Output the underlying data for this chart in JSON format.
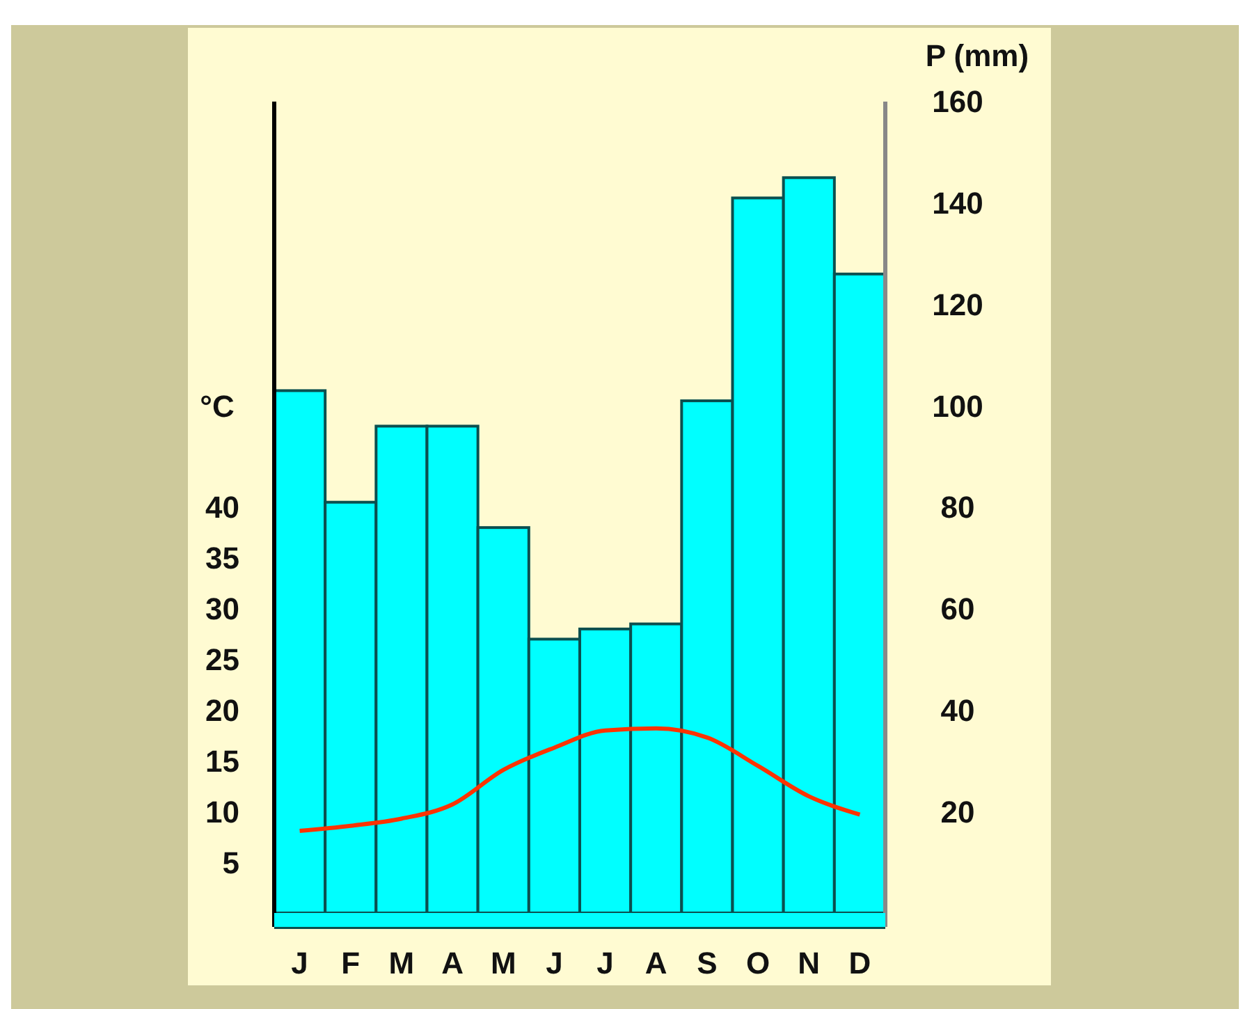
{
  "chart_data": {
    "type": "bar",
    "categories": [
      "J",
      "F",
      "M",
      "A",
      "M",
      "J",
      "J",
      "A",
      "S",
      "O",
      "N",
      "D"
    ],
    "series": [
      {
        "axis": "y2",
        "color": "#00ffff",
        "values": [
          103,
          81,
          96,
          96,
          76,
          54,
          56,
          57,
          101,
          141,
          145,
          126
        ]
      },
      {
        "type": "line",
        "axis": "y",
        "color": "#ff3300",
        "values": [
          8.1,
          8.6,
          9.3,
          10.7,
          14.1,
          16.3,
          18,
          18.2,
          17.3,
          14.5,
          11.5,
          9.7
        ]
      }
    ],
    "ylabel": "°C",
    "y2label": "P (mm)",
    "ylim": [
      0,
      80
    ],
    "yticks": [
      5,
      10,
      15,
      20,
      25,
      30,
      35,
      40
    ],
    "y2lim": [
      0,
      160
    ],
    "y2ticks": [
      20,
      40,
      60,
      80,
      100,
      120,
      140,
      160
    ],
    "grid": false,
    "marker": "none",
    "line_style": "solid"
  }
}
